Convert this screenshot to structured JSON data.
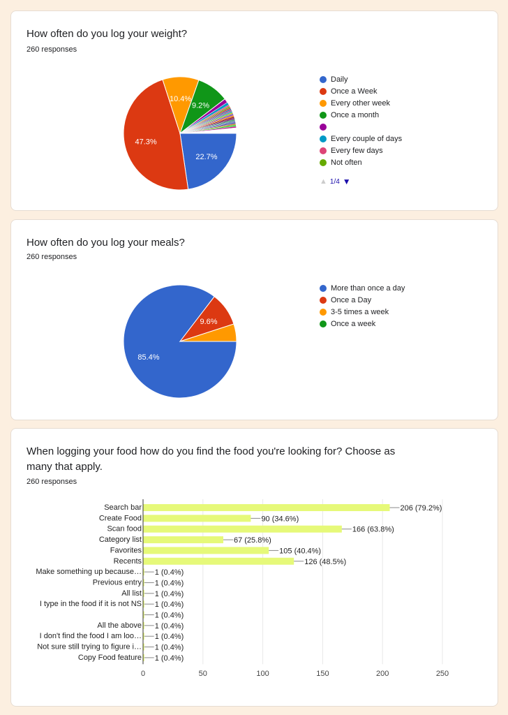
{
  "chart_data": [
    {
      "type": "pie",
      "title": "How often do you log your weight?",
      "responses": "260 responses",
      "slices": [
        {
          "name": "Daily",
          "value": 22.7,
          "label": "22.7%",
          "color": "#3366cc"
        },
        {
          "name": "Once a Week",
          "value": 47.3,
          "label": "47.3%",
          "color": "#dc3912"
        },
        {
          "name": "Every other week",
          "value": 10.4,
          "label": "10.4%",
          "color": "#ff9900"
        },
        {
          "name": "Once a month",
          "value": 9.2,
          "label": "9.2%",
          "color": "#109618"
        },
        {
          "name": "",
          "value": 1.2,
          "color": "#990099"
        },
        {
          "name": "Every couple of days",
          "value": 0.8,
          "color": "#0099c6"
        },
        {
          "name": "Every few days",
          "value": 0.4,
          "color": "#dd4477"
        },
        {
          "name": "Not often",
          "value": 0.4,
          "color": "#66aa00"
        }
      ],
      "small_slices": [
        0.4,
        0.4,
        0.4,
        0.4,
        0.4,
        0.4,
        0.4,
        0.4,
        0.4,
        0.4,
        0.4,
        0.4,
        0.4,
        0.4,
        0.4
      ],
      "small_colors": [
        "#b82e2e",
        "#316395",
        "#994499",
        "#22aa99",
        "#aaaa11",
        "#6633cc",
        "#e67300",
        "#8b0707",
        "#651067",
        "#329262",
        "#5574a6",
        "#3b3eac",
        "#b77322",
        "#16d620",
        "#b91383"
      ],
      "legend_page": "1/4",
      "legend_placement": "right"
    },
    {
      "type": "pie",
      "title": "How often do you log your meals?",
      "responses": "260 responses",
      "slices": [
        {
          "name": "More than once a day",
          "value": 85.4,
          "label": "85.4%",
          "color": "#3366cc"
        },
        {
          "name": "Once a Day",
          "value": 9.6,
          "label": "9.6%",
          "color": "#dc3912"
        },
        {
          "name": "3-5 times a week",
          "value": 5.0,
          "color": "#ff9900"
        },
        {
          "name": "Once a week",
          "value": 0,
          "color": "#109618"
        }
      ],
      "legend_placement": "right"
    },
    {
      "type": "bar",
      "orientation": "horizontal",
      "title": "When logging your food how do you find the food you're looking for? Choose as many that apply.",
      "responses": "260 responses",
      "categories": [
        "Search bar",
        "Create Food",
        "Scan food",
        "Category list",
        "Favorites",
        "Recents",
        "Make something up because…",
        "Previous entry",
        "All list",
        "I type in the food if it is not NS",
        "",
        "All the above",
        "I don't find the food I am loo…",
        "Not sure still trying to figure i…",
        "Copy Food feature"
      ],
      "values": [
        206,
        90,
        166,
        67,
        105,
        126,
        1,
        1,
        1,
        1,
        1,
        1,
        1,
        1,
        1
      ],
      "data_labels": [
        "206 (79.2%)",
        "90 (34.6%)",
        "166 (63.8%)",
        "67 (25.8%)",
        "105 (40.4%)",
        "126 (48.5%)",
        "1 (0.4%)",
        "1 (0.4%)",
        "1 (0.4%)",
        "1 (0.4%)",
        "1 (0.4%)",
        "1 (0.4%)",
        "1 (0.4%)",
        "1 (0.4%)",
        "1 (0.4%)"
      ],
      "xlim": [
        0,
        250
      ],
      "xticks": [
        "0",
        "50",
        "100",
        "150",
        "200",
        "250"
      ],
      "grid": true,
      "bar_color": "#e6f979"
    }
  ]
}
